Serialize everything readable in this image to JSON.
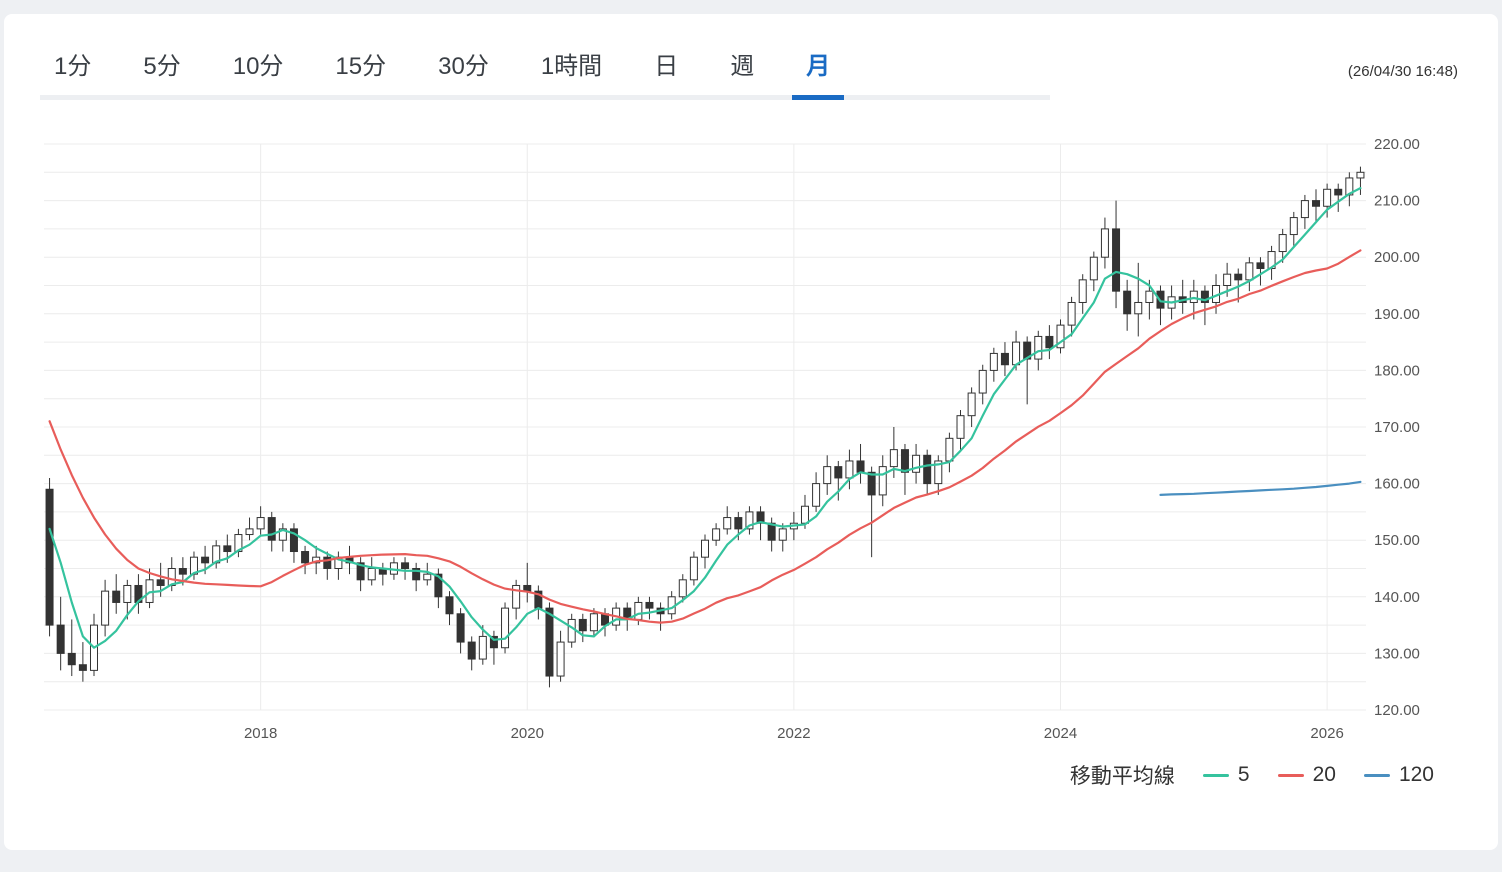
{
  "header": {
    "timestamp": "(26/04/30 16:48)"
  },
  "tabs": [
    "1分",
    "5分",
    "10分",
    "15分",
    "30分",
    "1時間",
    "日",
    "週",
    "月"
  ],
  "active_tab": "月",
  "colors": {
    "active_tab": "#1a6bc4",
    "tab_text": "#3a3f45",
    "grid": "#ececec",
    "axis_text": "#555555",
    "up_candle": "#ffffff",
    "down_candle": "#333333"
  },
  "chart_data": {
    "type": "candlestick",
    "period": "月",
    "y_tick_labels": [
      "220.00",
      "210.00",
      "200.00",
      "190.00",
      "180.00",
      "170.00",
      "160.00",
      "150.00",
      "140.00",
      "130.00",
      "120.00"
    ],
    "y_minor_step": 5,
    "ylim": [
      120,
      220
    ],
    "x_axis_labels": [
      {
        "text": "2018",
        "index": 19
      },
      {
        "text": "2020",
        "index": 43
      },
      {
        "text": "2022",
        "index": 67
      },
      {
        "text": "2024",
        "index": 91
      },
      {
        "text": "2026",
        "index": 115
      }
    ],
    "candles": [
      [
        159,
        161,
        133,
        135
      ],
      [
        135,
        140,
        127,
        130
      ],
      [
        130,
        136,
        126,
        128
      ],
      [
        128,
        132,
        125,
        127
      ],
      [
        127,
        137,
        126,
        135
      ],
      [
        135,
        143,
        133,
        141
      ],
      [
        141,
        144,
        137,
        139
      ],
      [
        139,
        143,
        136,
        142
      ],
      [
        142,
        144,
        137,
        139
      ],
      [
        139,
        145,
        138,
        143
      ],
      [
        143,
        146,
        140,
        142
      ],
      [
        142,
        147,
        141,
        145
      ],
      [
        145,
        147,
        142,
        144
      ],
      [
        144,
        148,
        143,
        147
      ],
      [
        147,
        149,
        144,
        146
      ],
      [
        146,
        150,
        145,
        149
      ],
      [
        149,
        151,
        146,
        148
      ],
      [
        148,
        152,
        147,
        151
      ],
      [
        151,
        154,
        150,
        152
      ],
      [
        152,
        156,
        151,
        154
      ],
      [
        154,
        155,
        148,
        150
      ],
      [
        150,
        153,
        148,
        152
      ],
      [
        152,
        153,
        146,
        148
      ],
      [
        148,
        149,
        144,
        146
      ],
      [
        146,
        149,
        144,
        147
      ],
      [
        147,
        148,
        143,
        145
      ],
      [
        145,
        148,
        143,
        147
      ],
      [
        147,
        149,
        144,
        146
      ],
      [
        146,
        147,
        141,
        143
      ],
      [
        143,
        147,
        142,
        145
      ],
      [
        145,
        146,
        142,
        144
      ],
      [
        144,
        147,
        143,
        146
      ],
      [
        146,
        147,
        143,
        145
      ],
      [
        145,
        146,
        141,
        143
      ],
      [
        143,
        146,
        142,
        144
      ],
      [
        144,
        145,
        138,
        140
      ],
      [
        140,
        141,
        135,
        137
      ],
      [
        137,
        138,
        130,
        132
      ],
      [
        132,
        133,
        127,
        129
      ],
      [
        129,
        135,
        128,
        133
      ],
      [
        133,
        134,
        128,
        131
      ],
      [
        131,
        139,
        130,
        138
      ],
      [
        138,
        143,
        136,
        142
      ],
      [
        142,
        146,
        139,
        141
      ],
      [
        141,
        142,
        136,
        138
      ],
      [
        138,
        139,
        124,
        126
      ],
      [
        126,
        134,
        125,
        132
      ],
      [
        132,
        137,
        131,
        136
      ],
      [
        136,
        137,
        132,
        134
      ],
      [
        134,
        138,
        133,
        137
      ],
      [
        137,
        138,
        133,
        135
      ],
      [
        135,
        139,
        134,
        138
      ],
      [
        138,
        139,
        134,
        136
      ],
      [
        136,
        140,
        135,
        139
      ],
      [
        139,
        140,
        136,
        138
      ],
      [
        138,
        139,
        134,
        137
      ],
      [
        137,
        141,
        136,
        140
      ],
      [
        140,
        144,
        139,
        143
      ],
      [
        143,
        148,
        142,
        147
      ],
      [
        147,
        151,
        145,
        150
      ],
      [
        150,
        153,
        149,
        152
      ],
      [
        152,
        156,
        151,
        154
      ],
      [
        154,
        155,
        150,
        152
      ],
      [
        152,
        156,
        151,
        155
      ],
      [
        155,
        156,
        150,
        153
      ],
      [
        153,
        154,
        148,
        150
      ],
      [
        150,
        153,
        148,
        152
      ],
      [
        152,
        155,
        150,
        153
      ],
      [
        153,
        158,
        152,
        156
      ],
      [
        156,
        162,
        155,
        160
      ],
      [
        160,
        165,
        158,
        163
      ],
      [
        163,
        164,
        157,
        161
      ],
      [
        161,
        166,
        159,
        164
      ],
      [
        164,
        167,
        160,
        162
      ],
      [
        162,
        163,
        147,
        158
      ],
      [
        158,
        165,
        156,
        163
      ],
      [
        163,
        170,
        161,
        166
      ],
      [
        166,
        167,
        158,
        162
      ],
      [
        162,
        167,
        160,
        165
      ],
      [
        165,
        166,
        158,
        160
      ],
      [
        160,
        165,
        158,
        164
      ],
      [
        164,
        169,
        162,
        168
      ],
      [
        168,
        173,
        166,
        172
      ],
      [
        172,
        177,
        170,
        176
      ],
      [
        176,
        181,
        174,
        180
      ],
      [
        180,
        184,
        178,
        183
      ],
      [
        183,
        185,
        179,
        181
      ],
      [
        181,
        187,
        180,
        185
      ],
      [
        185,
        186,
        174,
        182
      ],
      [
        182,
        187,
        180,
        186
      ],
      [
        186,
        188,
        182,
        184
      ],
      [
        184,
        189,
        183,
        188
      ],
      [
        188,
        193,
        186,
        192
      ],
      [
        192,
        197,
        190,
        196
      ],
      [
        196,
        201,
        194,
        200
      ],
      [
        200,
        207,
        198,
        205
      ],
      [
        205,
        210,
        191,
        194
      ],
      [
        194,
        196,
        187,
        190
      ],
      [
        190,
        199,
        186,
        192
      ],
      [
        192,
        196,
        189,
        194
      ],
      [
        194,
        195,
        188,
        191
      ],
      [
        191,
        195,
        189,
        193
      ],
      [
        193,
        196,
        190,
        192
      ],
      [
        192,
        196,
        189,
        194
      ],
      [
        194,
        195,
        188,
        192
      ],
      [
        192,
        197,
        190,
        195
      ],
      [
        195,
        199,
        193,
        197
      ],
      [
        197,
        198,
        192,
        196
      ],
      [
        196,
        200,
        194,
        199
      ],
      [
        199,
        200,
        195,
        198
      ],
      [
        198,
        202,
        196,
        201
      ],
      [
        201,
        205,
        199,
        204
      ],
      [
        204,
        208,
        202,
        207
      ],
      [
        207,
        211,
        205,
        210
      ],
      [
        210,
        212,
        206,
        209
      ],
      [
        209,
        213,
        207,
        212
      ],
      [
        212,
        213,
        208,
        211
      ],
      [
        211,
        215,
        209,
        214
      ],
      [
        214,
        216,
        211,
        215
      ]
    ],
    "ma": {
      "label": "移動平均線",
      "series": [
        {
          "name": "5",
          "color": "#35c39e",
          "period": 5,
          "prefix": [
            152,
            146,
            139,
            133
          ]
        },
        {
          "name": "20",
          "color": "#e85d5a",
          "period": 20,
          "prefix": [
            171,
            166,
            161.5,
            157.5,
            154,
            151,
            148.5,
            146.5,
            145,
            144.2,
            143.6,
            143.1,
            142.8,
            142.5,
            142.3,
            142.2,
            142.1,
            142,
            141.9
          ]
        },
        {
          "name": "120",
          "color": "#4a8fc0",
          "values_from": 100,
          "values": [
            158,
            158.1,
            158.15,
            158.2,
            158.3,
            158.4,
            158.5,
            158.6,
            158.7,
            158.8,
            158.9,
            159,
            159.1,
            159.25,
            159.4,
            159.6,
            159.8,
            160,
            160.3
          ]
        }
      ]
    }
  }
}
